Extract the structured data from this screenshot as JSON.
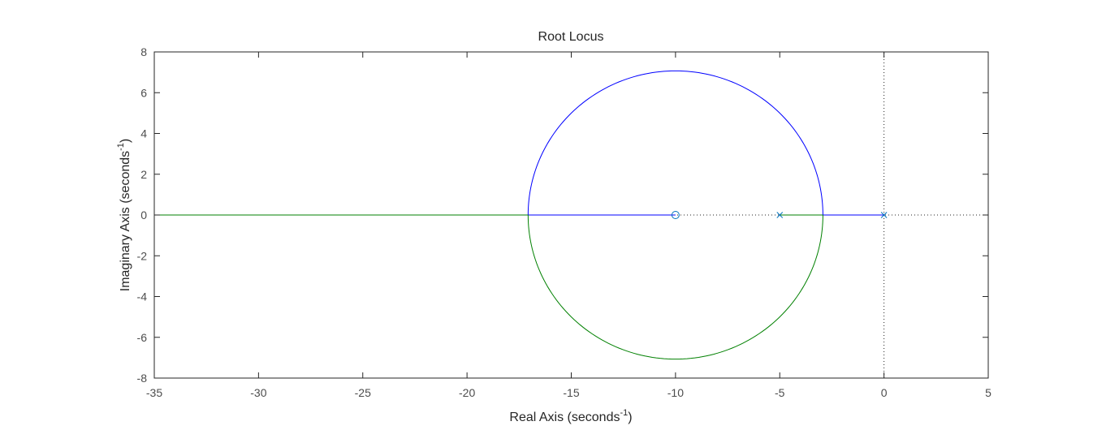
{
  "chart_data": {
    "type": "line",
    "title": "Root Locus",
    "xlabel": {
      "base": "Real Axis (seconds",
      "sup": "-1",
      "tail": ")"
    },
    "ylabel": {
      "base": "Imaginary Axis (seconds",
      "sup": "-1",
      "tail": ")"
    },
    "xlim": [
      -35,
      5
    ],
    "ylim": [
      -8,
      8
    ],
    "xticks": [
      -35,
      -30,
      -25,
      -20,
      -15,
      -10,
      -5,
      0,
      5
    ],
    "yticks": [
      -8,
      -6,
      -4,
      -2,
      0,
      2,
      4,
      6,
      8
    ],
    "grid": false,
    "legend": "none",
    "poles": [
      {
        "real": 0,
        "imag": 0
      },
      {
        "real": -5,
        "imag": 0
      }
    ],
    "zeros": [
      {
        "real": -10,
        "imag": 0
      }
    ],
    "series": [
      {
        "branch": 1,
        "color": "#0000ff",
        "segments": [
          {
            "kind": "real_axis",
            "from": 0,
            "to": -2.93
          },
          {
            "kind": "circle_arc",
            "center": -10,
            "radius": 7.07,
            "from_deg": 0,
            "to_deg": 180,
            "half": "upper"
          },
          {
            "kind": "real_axis",
            "from": -17.07,
            "to": -10
          }
        ]
      },
      {
        "branch": 2,
        "color": "#008000",
        "segments": [
          {
            "kind": "real_axis",
            "from": -5,
            "to": -2.93
          },
          {
            "kind": "circle_arc",
            "center": -10,
            "radius": 7.07,
            "from_deg": 0,
            "to_deg": -180,
            "half": "lower"
          },
          {
            "kind": "real_axis",
            "from": -17.07,
            "to": -35
          }
        ]
      }
    ],
    "colors": {
      "axes": "#262626",
      "tick_label": "#4d4d4d",
      "marker": "#0072bd",
      "dotted_axis": "#262626"
    }
  }
}
